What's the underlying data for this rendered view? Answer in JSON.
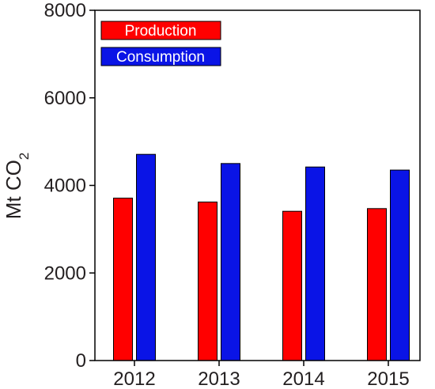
{
  "chart_data": {
    "type": "bar",
    "title": "",
    "xlabel": "",
    "ylabel": "Mt CO",
    "ylabel_subscript": "2",
    "categories": [
      "2012",
      "2013",
      "2014",
      "2015"
    ],
    "series": [
      {
        "name": "Production",
        "color": "#ff0000",
        "values": [
          3710,
          3620,
          3410,
          3470
        ]
      },
      {
        "name": "Consumption",
        "color": "#0a14e6",
        "values": [
          4710,
          4500,
          4420,
          4350
        ]
      }
    ],
    "ylim": [
      0,
      8000
    ],
    "yticks": [
      "0",
      "2000",
      "4000",
      "6000",
      "8000"
    ],
    "ytick_values": [
      0,
      2000,
      4000,
      6000,
      8000
    ],
    "grid": false,
    "legend_position": "top-left"
  }
}
